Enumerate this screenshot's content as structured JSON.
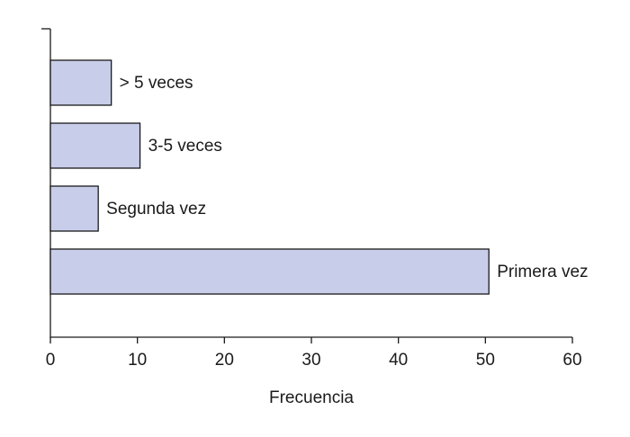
{
  "chart_data": {
    "type": "hbar",
    "categories": [
      "> 5 veces",
      "3-5 veces",
      "Segunda vez",
      "Primera vez"
    ],
    "values": [
      7,
      10.3,
      5.5,
      50.4
    ],
    "color": "#c8cdea",
    "xlabel": "Frecuencia",
    "xlim": [
      0,
      60
    ],
    "xticks": [
      0,
      10,
      20,
      30,
      40,
      50,
      60
    ]
  }
}
